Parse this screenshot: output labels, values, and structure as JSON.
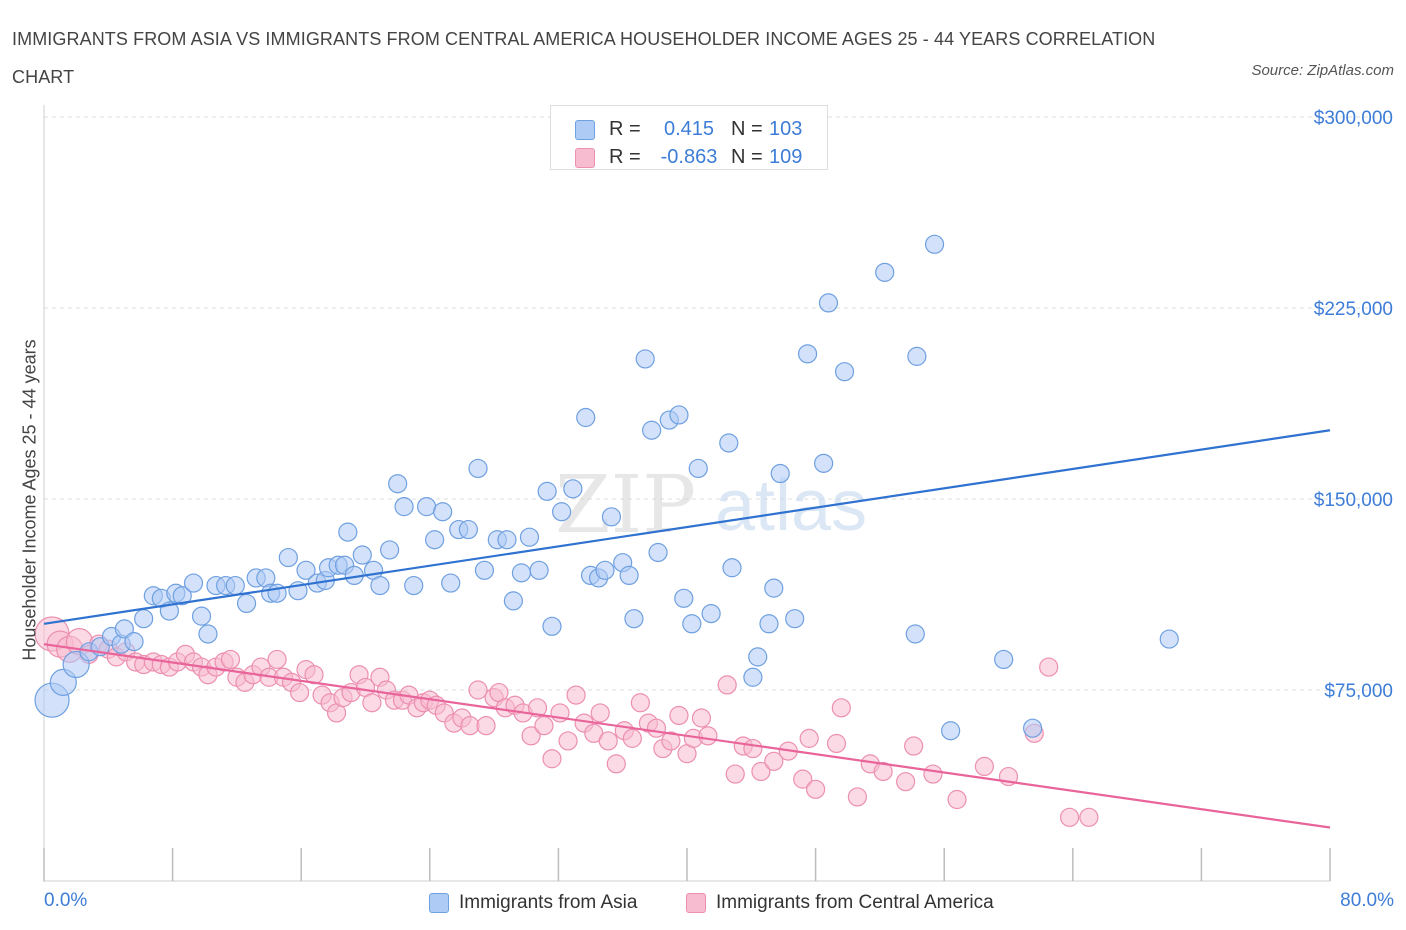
{
  "header": {
    "title": "IMMIGRANTS FROM ASIA VS IMMIGRANTS FROM CENTRAL AMERICA HOUSEHOLDER INCOME AGES 25 - 44 YEARS CORRELATION CHART",
    "source": "Source: ZipAtlas.com"
  },
  "watermark": {
    "zip": "ZIP",
    "atlas": "atlas"
  },
  "legend_top": {
    "rows": [
      {
        "r_label": "R =",
        "r_value": "0.415",
        "n_label": "N =",
        "n_value": "103"
      },
      {
        "r_label": "R =",
        "r_value": "-0.863",
        "n_label": "N =",
        "n_value": "109"
      }
    ]
  },
  "legend_bottom": [
    {
      "label": "Immigrants from Asia"
    },
    {
      "label": "Immigrants from Central America"
    }
  ],
  "colors": {
    "blue_fill": "#aecbf5",
    "blue_stroke": "#6fa0e0",
    "blue_line": "#2f72d0",
    "pink_fill": "#f7bcd0",
    "pink_stroke": "#ec8fb0",
    "pink_line": "#e8649a",
    "grid": "#dcdcdc",
    "axis_text": "#3d7dd8"
  },
  "chart_data": {
    "type": "scatter",
    "title": "IMMIGRANTS FROM ASIA VS IMMIGRANTS FROM CENTRAL AMERICA HOUSEHOLDER INCOME AGES 25 - 44 YEARS CORRELATION CHART",
    "xlabel": "",
    "ylabel": "Householder Income Ages 25 - 44 years",
    "xlim": [
      0,
      80
    ],
    "ylim": [
      0,
      300000
    ],
    "x_tick_labels": [
      {
        "value": 0,
        "label": "0.0%"
      },
      {
        "value": 80,
        "label": "80.0%"
      }
    ],
    "y_tick_labels": [
      {
        "value": 75000,
        "label": "$75,000"
      },
      {
        "value": 150000,
        "label": "$150,000"
      },
      {
        "value": 225000,
        "label": "$225,000"
      },
      {
        "value": 300000,
        "label": "$300,000"
      }
    ],
    "series": [
      {
        "name": "Immigrants from Asia",
        "color": "blue",
        "trend": {
          "x": [
            0,
            80
          ],
          "y": [
            101000,
            177000
          ]
        },
        "points": [
          [
            0.5,
            71000,
            3
          ],
          [
            1.2,
            78000,
            2
          ],
          [
            2.0,
            85000,
            2
          ],
          [
            2.8,
            90000,
            1
          ],
          [
            3.5,
            92000,
            1
          ],
          [
            4.2,
            96000,
            1
          ],
          [
            4.8,
            93000,
            1
          ],
          [
            5.0,
            99000,
            1
          ],
          [
            5.6,
            94000,
            1
          ],
          [
            6.2,
            103000,
            1
          ],
          [
            6.8,
            112000,
            1
          ],
          [
            7.3,
            111000,
            1
          ],
          [
            7.8,
            106000,
            1
          ],
          [
            8.2,
            113000,
            1
          ],
          [
            8.6,
            112000,
            1
          ],
          [
            9.3,
            117000,
            1
          ],
          [
            9.8,
            104000,
            1
          ],
          [
            10.2,
            97000,
            1
          ],
          [
            10.7,
            116000,
            1
          ],
          [
            11.3,
            116000,
            1
          ],
          [
            11.9,
            116000,
            1
          ],
          [
            12.6,
            109000,
            1
          ],
          [
            13.2,
            119000,
            1
          ],
          [
            13.8,
            119000,
            1
          ],
          [
            14.1,
            113000,
            1
          ],
          [
            14.5,
            113000,
            1
          ],
          [
            15.2,
            127000,
            1
          ],
          [
            15.8,
            114000,
            1
          ],
          [
            16.3,
            122000,
            1
          ],
          [
            17.0,
            117000,
            1
          ],
          [
            17.5,
            118000,
            1
          ],
          [
            17.7,
            123000,
            1
          ],
          [
            18.3,
            124000,
            1
          ],
          [
            18.7,
            124000,
            1
          ],
          [
            18.9,
            137000,
            1
          ],
          [
            19.3,
            120000,
            1
          ],
          [
            19.8,
            128000,
            1
          ],
          [
            20.5,
            122000,
            1
          ],
          [
            20.9,
            116000,
            1
          ],
          [
            21.5,
            130000,
            1
          ],
          [
            22.0,
            156000,
            1
          ],
          [
            22.4,
            147000,
            1
          ],
          [
            23.0,
            116000,
            1
          ],
          [
            23.8,
            147000,
            1
          ],
          [
            24.3,
            134000,
            1
          ],
          [
            24.8,
            145000,
            1
          ],
          [
            25.3,
            117000,
            1
          ],
          [
            25.8,
            138000,
            1
          ],
          [
            26.4,
            138000,
            1
          ],
          [
            27.0,
            162000,
            1
          ],
          [
            27.4,
            122000,
            1
          ],
          [
            28.2,
            134000,
            1
          ],
          [
            28.8,
            134000,
            1
          ],
          [
            29.2,
            110000,
            1
          ],
          [
            29.7,
            121000,
            1
          ],
          [
            30.2,
            135000,
            1
          ],
          [
            30.8,
            122000,
            1
          ],
          [
            31.3,
            153000,
            1
          ],
          [
            31.6,
            100000,
            1
          ],
          [
            32.2,
            145000,
            1
          ],
          [
            32.9,
            154000,
            1
          ],
          [
            33.7,
            182000,
            1
          ],
          [
            34.0,
            120000,
            1
          ],
          [
            34.5,
            119000,
            1
          ],
          [
            34.9,
            122000,
            1
          ],
          [
            35.3,
            143000,
            1
          ],
          [
            36.0,
            125000,
            1
          ],
          [
            36.4,
            120000,
            1
          ],
          [
            36.7,
            103000,
            1
          ],
          [
            37.4,
            205000,
            1
          ],
          [
            37.8,
            177000,
            1
          ],
          [
            38.2,
            129000,
            1
          ],
          [
            38.9,
            181000,
            1
          ],
          [
            39.5,
            183000,
            1
          ],
          [
            39.8,
            111000,
            1
          ],
          [
            40.3,
            101000,
            1
          ],
          [
            40.7,
            162000,
            1
          ],
          [
            41.5,
            105000,
            1
          ],
          [
            42.6,
            172000,
            1
          ],
          [
            42.8,
            123000,
            1
          ],
          [
            44.1,
            80000,
            1
          ],
          [
            44.4,
            88000,
            1
          ],
          [
            45.1,
            101000,
            1
          ],
          [
            45.4,
            115000,
            1
          ],
          [
            45.8,
            160000,
            1
          ],
          [
            46.7,
            103000,
            1
          ],
          [
            47.5,
            207000,
            1
          ],
          [
            48.5,
            164000,
            1
          ],
          [
            48.8,
            227000,
            1
          ],
          [
            49.8,
            200000,
            1
          ],
          [
            52.3,
            239000,
            1
          ],
          [
            54.2,
            97000,
            1
          ],
          [
            54.3,
            206000,
            1
          ],
          [
            55.4,
            250000,
            1
          ],
          [
            56.4,
            59000,
            1
          ],
          [
            59.7,
            87000,
            1
          ],
          [
            61.5,
            60000,
            1
          ],
          [
            70.0,
            95000,
            1
          ]
        ]
      },
      {
        "name": "Immigrants from Central America",
        "color": "pink",
        "trend": {
          "x": [
            0,
            80
          ],
          "y": [
            93000,
            21000
          ]
        },
        "points": [
          [
            0.5,
            97000,
            3
          ],
          [
            1.0,
            93000,
            2
          ],
          [
            1.6,
            91000,
            2
          ],
          [
            2.2,
            94000,
            2
          ],
          [
            2.8,
            89000,
            1
          ],
          [
            3.4,
            93000,
            1
          ],
          [
            4.0,
            91000,
            1
          ],
          [
            4.5,
            88000,
            1
          ],
          [
            5.1,
            90000,
            1
          ],
          [
            5.7,
            86000,
            1
          ],
          [
            6.2,
            85000,
            1
          ],
          [
            6.8,
            86000,
            1
          ],
          [
            7.3,
            85000,
            1
          ],
          [
            7.8,
            84000,
            1
          ],
          [
            8.3,
            86000,
            1
          ],
          [
            8.8,
            89000,
            1
          ],
          [
            9.3,
            86000,
            1
          ],
          [
            9.8,
            84000,
            1
          ],
          [
            10.2,
            81000,
            1
          ],
          [
            10.7,
            84000,
            1
          ],
          [
            11.2,
            86000,
            1
          ],
          [
            11.6,
            87000,
            1
          ],
          [
            12.0,
            80000,
            1
          ],
          [
            12.5,
            78000,
            1
          ],
          [
            13.0,
            81000,
            1
          ],
          [
            13.5,
            84000,
            1
          ],
          [
            14.0,
            80000,
            1
          ],
          [
            14.5,
            87000,
            1
          ],
          [
            14.9,
            80000,
            1
          ],
          [
            15.4,
            78000,
            1
          ],
          [
            15.9,
            74000,
            1
          ],
          [
            16.3,
            83000,
            1
          ],
          [
            16.8,
            81000,
            1
          ],
          [
            17.3,
            73000,
            1
          ],
          [
            17.8,
            70000,
            1
          ],
          [
            18.2,
            66000,
            1
          ],
          [
            18.6,
            72000,
            1
          ],
          [
            19.1,
            74000,
            1
          ],
          [
            19.6,
            81000,
            1
          ],
          [
            20.0,
            76000,
            1
          ],
          [
            20.4,
            70000,
            1
          ],
          [
            20.9,
            80000,
            1
          ],
          [
            21.3,
            75000,
            1
          ],
          [
            21.8,
            71000,
            1
          ],
          [
            22.3,
            71000,
            1
          ],
          [
            22.7,
            73000,
            1
          ],
          [
            23.2,
            68000,
            1
          ],
          [
            23.6,
            70000,
            1
          ],
          [
            24.0,
            71000,
            1
          ],
          [
            24.4,
            69000,
            1
          ],
          [
            24.9,
            66000,
            1
          ],
          [
            25.5,
            62000,
            1
          ],
          [
            26.0,
            64000,
            1
          ],
          [
            26.5,
            61000,
            1
          ],
          [
            27.0,
            75000,
            1
          ],
          [
            27.5,
            61000,
            1
          ],
          [
            28.0,
            72000,
            1
          ],
          [
            28.3,
            74000,
            1
          ],
          [
            28.7,
            68000,
            1
          ],
          [
            29.3,
            69000,
            1
          ],
          [
            29.8,
            66000,
            1
          ],
          [
            30.3,
            57000,
            1
          ],
          [
            30.7,
            68000,
            1
          ],
          [
            31.1,
            61000,
            1
          ],
          [
            31.6,
            48000,
            1
          ],
          [
            32.1,
            66000,
            1
          ],
          [
            32.6,
            55000,
            1
          ],
          [
            33.1,
            73000,
            1
          ],
          [
            33.6,
            62000,
            1
          ],
          [
            34.2,
            58000,
            1
          ],
          [
            34.6,
            66000,
            1
          ],
          [
            35.1,
            55000,
            1
          ],
          [
            35.6,
            46000,
            1
          ],
          [
            36.1,
            59000,
            1
          ],
          [
            36.6,
            56000,
            1
          ],
          [
            37.1,
            70000,
            1
          ],
          [
            37.6,
            62000,
            1
          ],
          [
            38.1,
            60000,
            1
          ],
          [
            38.5,
            52000,
            1
          ],
          [
            39.0,
            55000,
            1
          ],
          [
            39.5,
            65000,
            1
          ],
          [
            40.0,
            50000,
            1
          ],
          [
            40.4,
            56000,
            1
          ],
          [
            40.9,
            64000,
            1
          ],
          [
            41.3,
            57000,
            1
          ],
          [
            42.5,
            77000,
            1
          ],
          [
            43.0,
            42000,
            1
          ],
          [
            43.5,
            53000,
            1
          ],
          [
            44.1,
            52000,
            1
          ],
          [
            44.6,
            43000,
            1
          ],
          [
            45.4,
            47000,
            1
          ],
          [
            46.3,
            51000,
            1
          ],
          [
            47.2,
            40000,
            1
          ],
          [
            47.6,
            56000,
            1
          ],
          [
            48.0,
            36000,
            1
          ],
          [
            49.3,
            54000,
            1
          ],
          [
            49.6,
            68000,
            1
          ],
          [
            50.6,
            33000,
            1
          ],
          [
            51.4,
            46000,
            1
          ],
          [
            52.2,
            43000,
            1
          ],
          [
            53.6,
            39000,
            1
          ],
          [
            54.1,
            53000,
            1
          ],
          [
            55.3,
            42000,
            1
          ],
          [
            56.8,
            32000,
            1
          ],
          [
            58.5,
            45000,
            1
          ],
          [
            60.0,
            41000,
            1
          ],
          [
            61.6,
            58000,
            1
          ],
          [
            62.5,
            84000,
            1
          ],
          [
            63.8,
            25000,
            1
          ],
          [
            65.0,
            25000,
            1
          ]
        ]
      }
    ]
  }
}
